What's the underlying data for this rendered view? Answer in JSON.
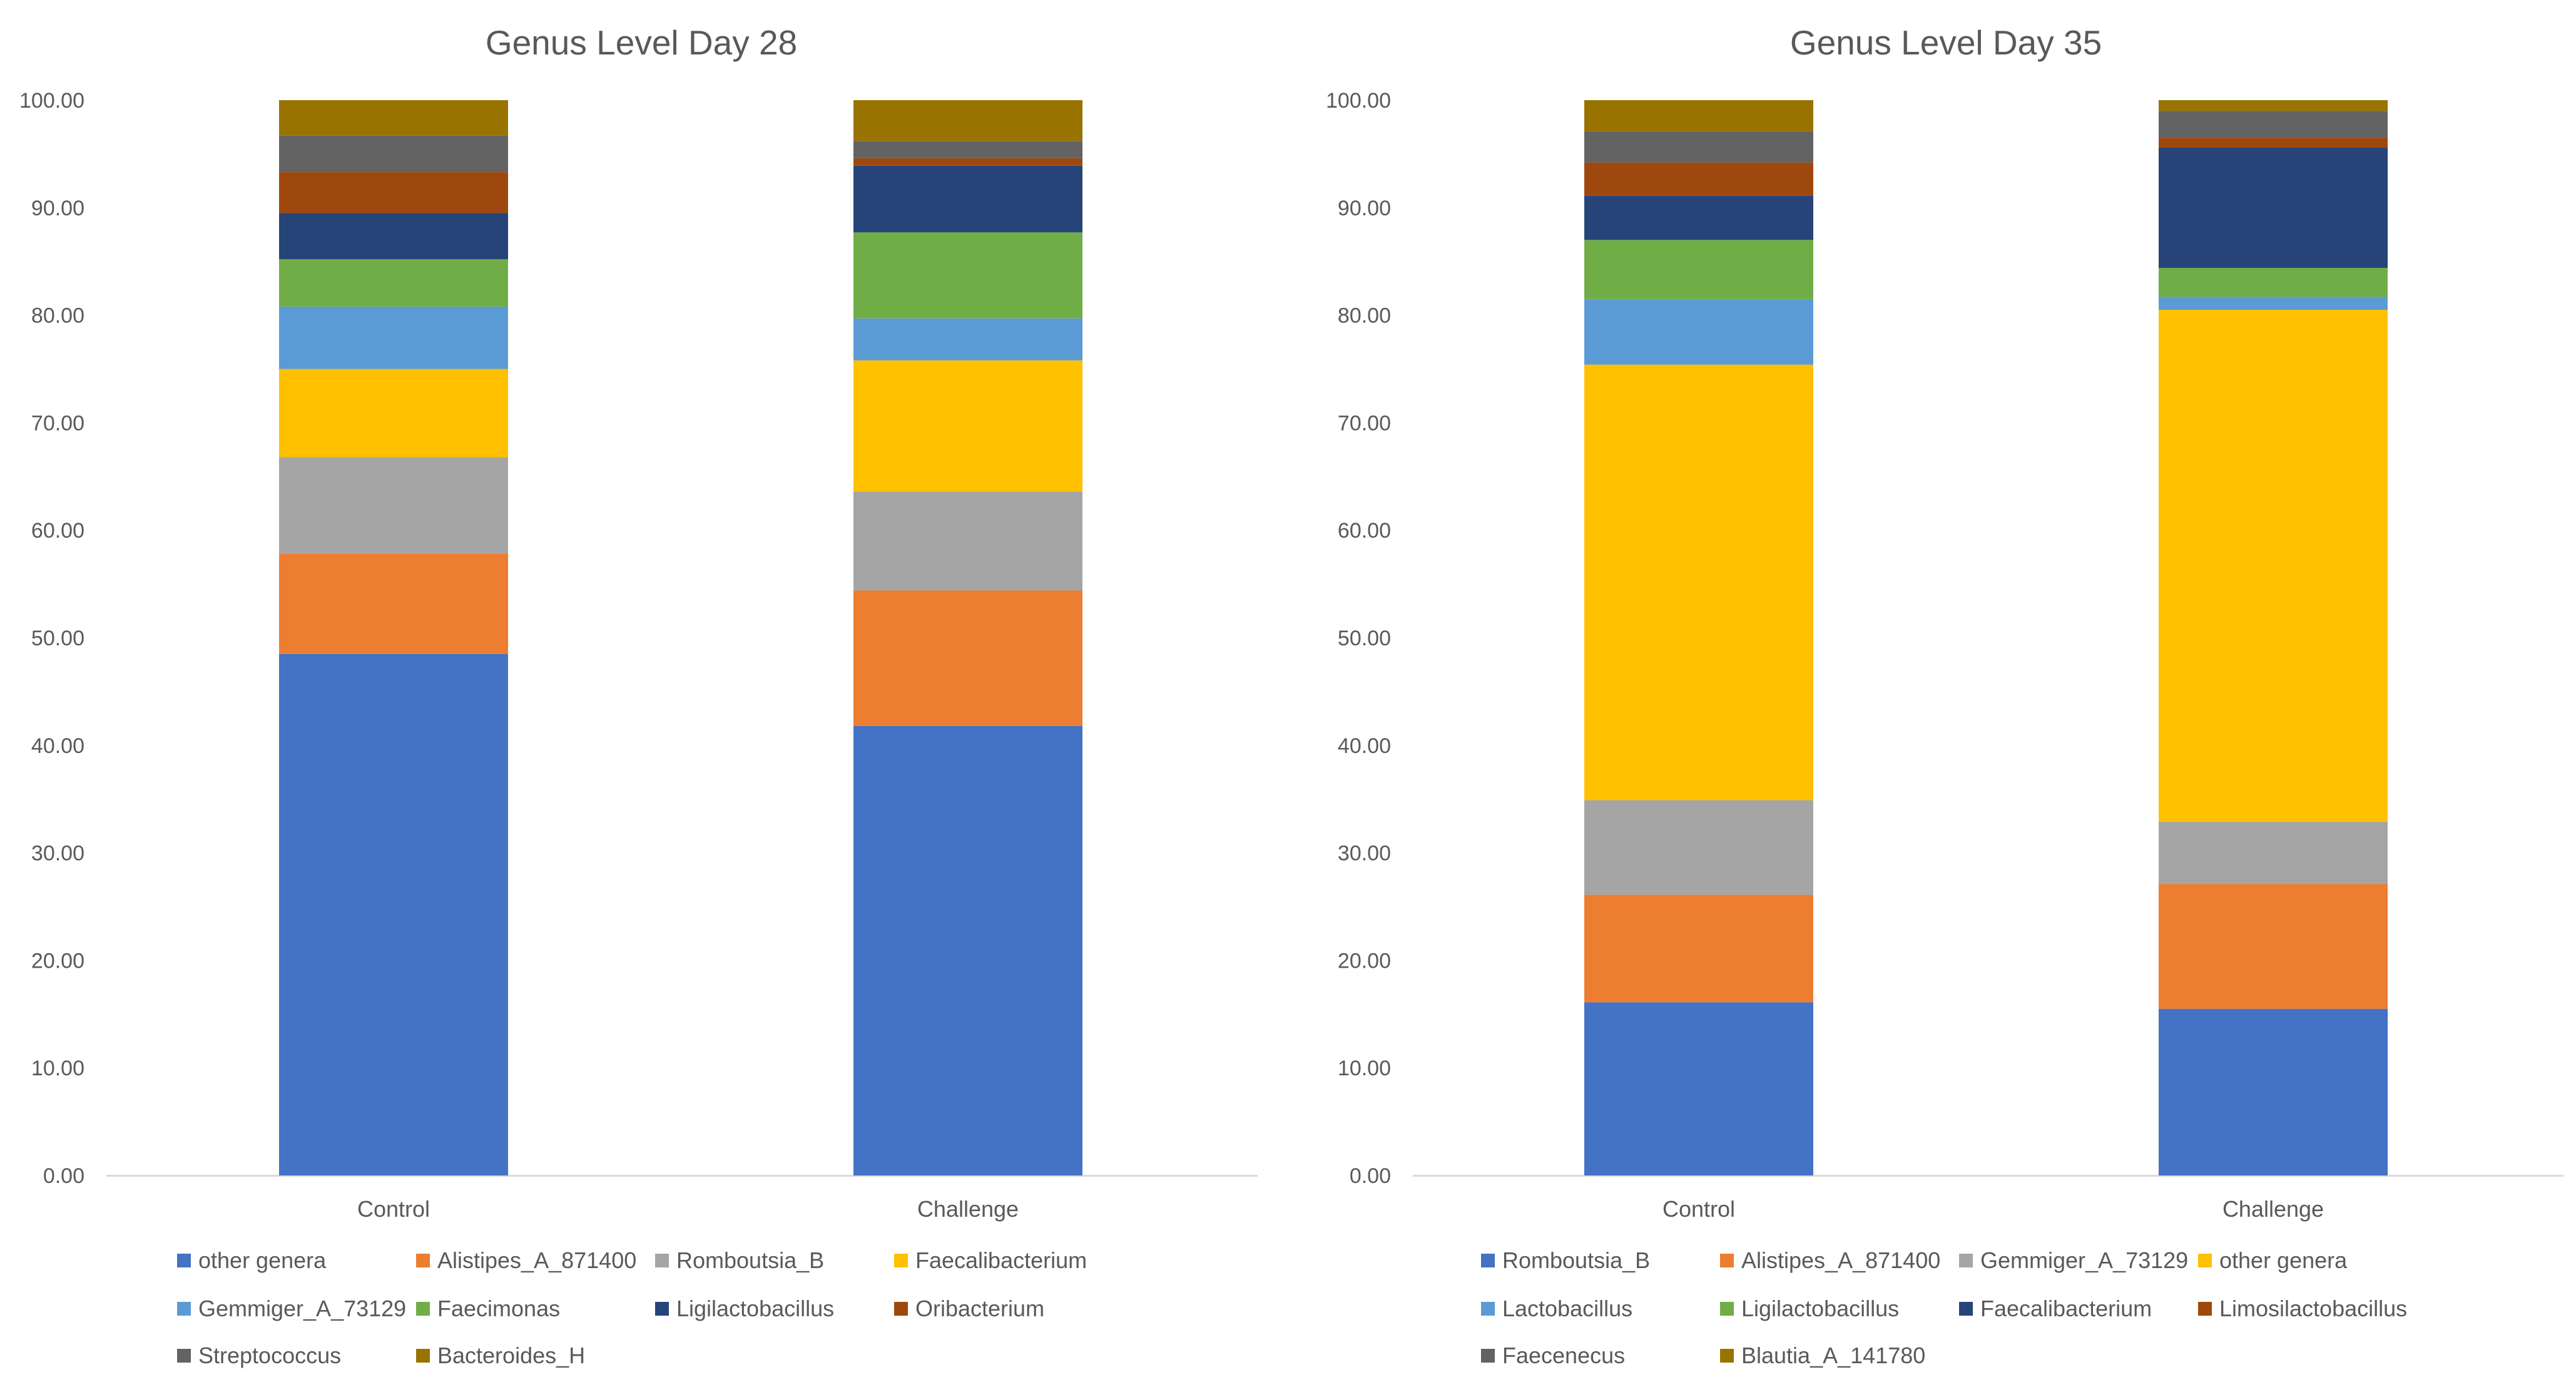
{
  "chart_data": [
    {
      "type": "stacked_bar",
      "title": "Genus Level Day 28",
      "xlabel": "",
      "ylabel": "",
      "ylim": [
        0,
        100
      ],
      "yticks": [
        "0.00",
        "10.00",
        "20.00",
        "30.00",
        "40.00",
        "50.00",
        "60.00",
        "70.00",
        "80.00",
        "90.00",
        "100.00"
      ],
      "categories": [
        "Control",
        "Challenge"
      ],
      "legend_position": "bottom",
      "series": [
        {
          "name": "other genera",
          "color": "#4472C4",
          "values": [
            48.5,
            41.8
          ]
        },
        {
          "name": "Alistipes_A_871400",
          "color": "#ED7D31",
          "values": [
            9.3,
            12.6
          ]
        },
        {
          "name": "Romboutsia_B",
          "color": "#A5A5A5",
          "values": [
            9.0,
            9.2
          ]
        },
        {
          "name": "Faecalibacterium",
          "color": "#FFC000",
          "values": [
            8.2,
            12.2
          ]
        },
        {
          "name": "Gemmiger_A_73129",
          "color": "#5B9BD5",
          "values": [
            5.8,
            3.9
          ]
        },
        {
          "name": "Faecimonas",
          "color": "#70AD47",
          "values": [
            4.4,
            8.0
          ]
        },
        {
          "name": "Ligilactobacillus",
          "color": "#264478",
          "values": [
            4.3,
            6.2
          ]
        },
        {
          "name": "Oribacterium",
          "color": "#9E480E",
          "values": [
            3.8,
            0.7
          ]
        },
        {
          "name": "Streptococcus",
          "color": "#636363",
          "values": [
            3.4,
            1.6
          ]
        },
        {
          "name": "Bacteroides_H",
          "color": "#997300",
          "values": [
            3.3,
            3.8
          ]
        }
      ]
    },
    {
      "type": "stacked_bar",
      "title": "Genus Level Day 35",
      "xlabel": "",
      "ylabel": "",
      "ylim": [
        0,
        100
      ],
      "yticks": [
        "0.00",
        "10.00",
        "20.00",
        "30.00",
        "40.00",
        "50.00",
        "60.00",
        "70.00",
        "80.00",
        "90.00",
        "100.00"
      ],
      "categories": [
        "Control",
        "Challenge"
      ],
      "legend_position": "bottom",
      "series": [
        {
          "name": "Romboutsia_B",
          "color": "#4472C4",
          "values": [
            16.1,
            15.5
          ]
        },
        {
          "name": "Alistipes_A_871400",
          "color": "#ED7D31",
          "values": [
            10.0,
            11.6
          ]
        },
        {
          "name": "Gemmiger_A_73129",
          "color": "#A5A5A5",
          "values": [
            8.8,
            5.8
          ]
        },
        {
          "name": "other genera",
          "color": "#FFC000",
          "values": [
            40.5,
            47.6
          ]
        },
        {
          "name": "Lactobacillus",
          "color": "#5B9BD5",
          "values": [
            6.1,
            1.2
          ]
        },
        {
          "name": "Ligilactobacillus",
          "color": "#70AD47",
          "values": [
            5.5,
            2.7
          ]
        },
        {
          "name": "Faecalibacterium",
          "color": "#264478",
          "values": [
            4.1,
            11.2
          ]
        },
        {
          "name": "Limosilactobacillus",
          "color": "#9E480E",
          "values": [
            3.1,
            0.9
          ]
        },
        {
          "name": "Faecenecus",
          "color": "#636363",
          "values": [
            2.9,
            2.5
          ]
        },
        {
          "name": "Blautia_A_141780",
          "color": "#997300",
          "values": [
            2.9,
            1.0
          ]
        }
      ]
    }
  ],
  "colors": {
    "text": "#595959",
    "axis": "#D9D9D9"
  }
}
